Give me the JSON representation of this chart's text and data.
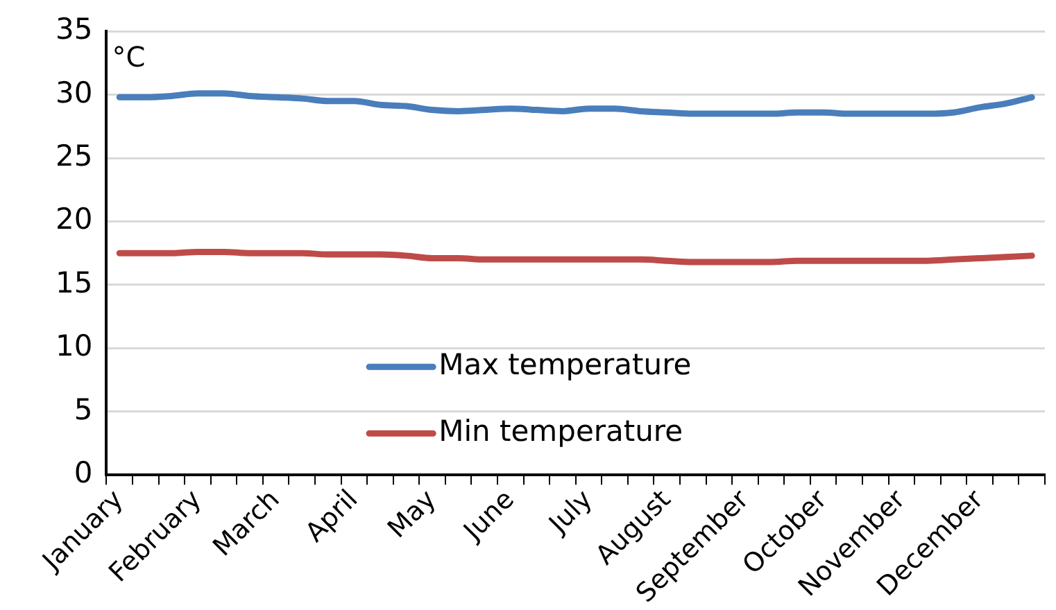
{
  "chart_data": {
    "type": "line",
    "ylabel": "°C",
    "categories": [
      "January",
      null,
      null,
      "February",
      null,
      null,
      "March",
      null,
      null,
      "April",
      null,
      null,
      "May",
      null,
      null,
      "June",
      null,
      null,
      "July",
      null,
      null,
      "August",
      null,
      null,
      "September",
      null,
      null,
      "October",
      null,
      null,
      "November",
      null,
      null,
      "December",
      null,
      null
    ],
    "series": [
      {
        "name": "Max temperature",
        "color": "#4a7ebb",
        "values": [
          29.8,
          29.8,
          29.9,
          30.1,
          30.1,
          29.9,
          29.8,
          29.7,
          29.5,
          29.5,
          29.2,
          29.1,
          28.8,
          28.7,
          28.8,
          28.9,
          28.8,
          28.7,
          28.9,
          28.9,
          28.7,
          28.6,
          28.5,
          28.5,
          28.5,
          28.5,
          28.6,
          28.6,
          28.5,
          28.5,
          28.5,
          28.5,
          28.6,
          29.0,
          29.3,
          29.8
        ]
      },
      {
        "name": "Min temperature",
        "color": "#be4b48",
        "values": [
          17.5,
          17.5,
          17.5,
          17.6,
          17.6,
          17.5,
          17.5,
          17.5,
          17.4,
          17.4,
          17.4,
          17.3,
          17.1,
          17.1,
          17.0,
          17.0,
          17.0,
          17.0,
          17.0,
          17.0,
          17.0,
          16.9,
          16.8,
          16.8,
          16.8,
          16.8,
          16.9,
          16.9,
          16.9,
          16.9,
          16.9,
          16.9,
          17.0,
          17.1,
          17.2,
          17.3
        ]
      }
    ],
    "ylim": [
      0,
      35
    ],
    "yticks": [
      0,
      5,
      10,
      15,
      20,
      25,
      30,
      35
    ],
    "grid": "y",
    "legend": "bottom",
    "marker": "none",
    "line_style": "solid"
  }
}
